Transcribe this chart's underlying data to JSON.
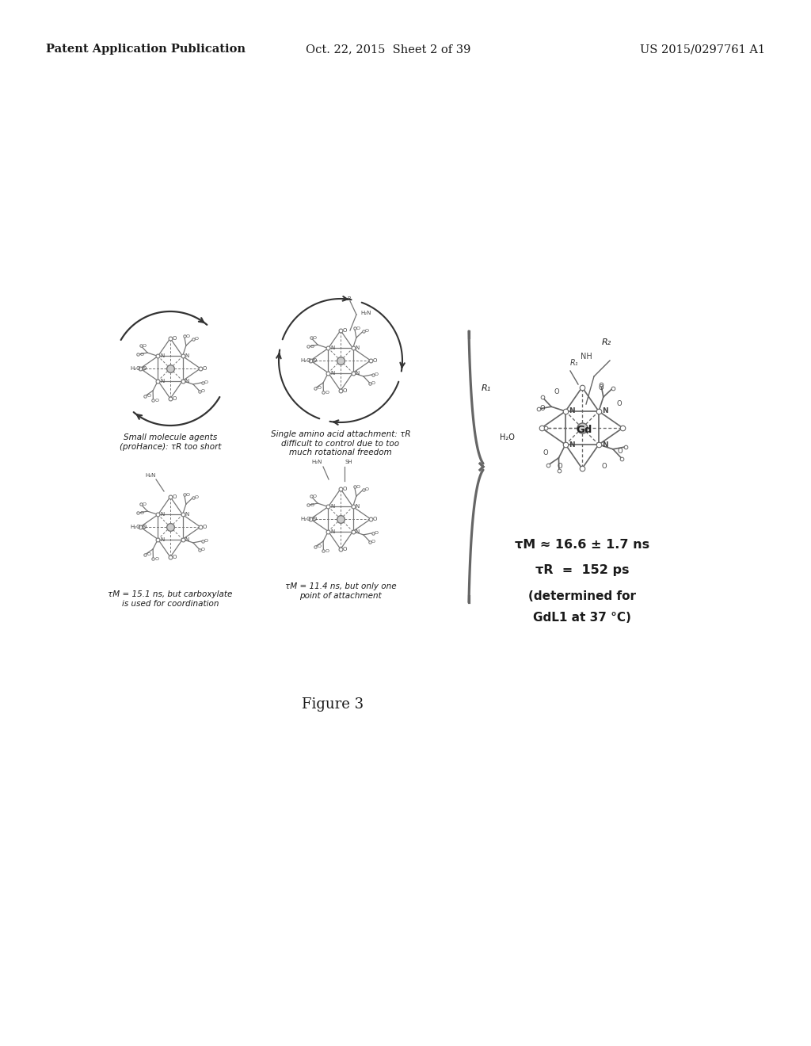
{
  "background_color": "#ffffff",
  "header_left": "Patent Application Publication",
  "header_center": "Oct. 22, 2015  Sheet 2 of 39",
  "header_right": "US 2015/0297761 A1",
  "figure_label": "Figure 3",
  "caption_top_left": "Small molecule agents\n(proHance): τR too short",
  "caption_top_right": "Single amino acid attachment: τR\ndifficult to control due to too\nmuch rotational freedom",
  "caption_bot_left": "τM = 15.1 ns, but carboxylate\nis used for coordination",
  "caption_bot_right": "τM = 11.4 ns, but only one\npoint of attachment",
  "result_line1": "τM ≈ 16.6 ± 1.7 ns",
  "result_line2": "τR  =  152 ps",
  "result_line3": "(determined for",
  "result_line4": "GdL1 at 37 °C)",
  "text_color": "#1a1a1a",
  "mol_color": "#888888",
  "mol_color_dark": "#444444",
  "header_fontsize": 10.5,
  "caption_fontsize": 7.5,
  "result_fontsize": 11.5
}
